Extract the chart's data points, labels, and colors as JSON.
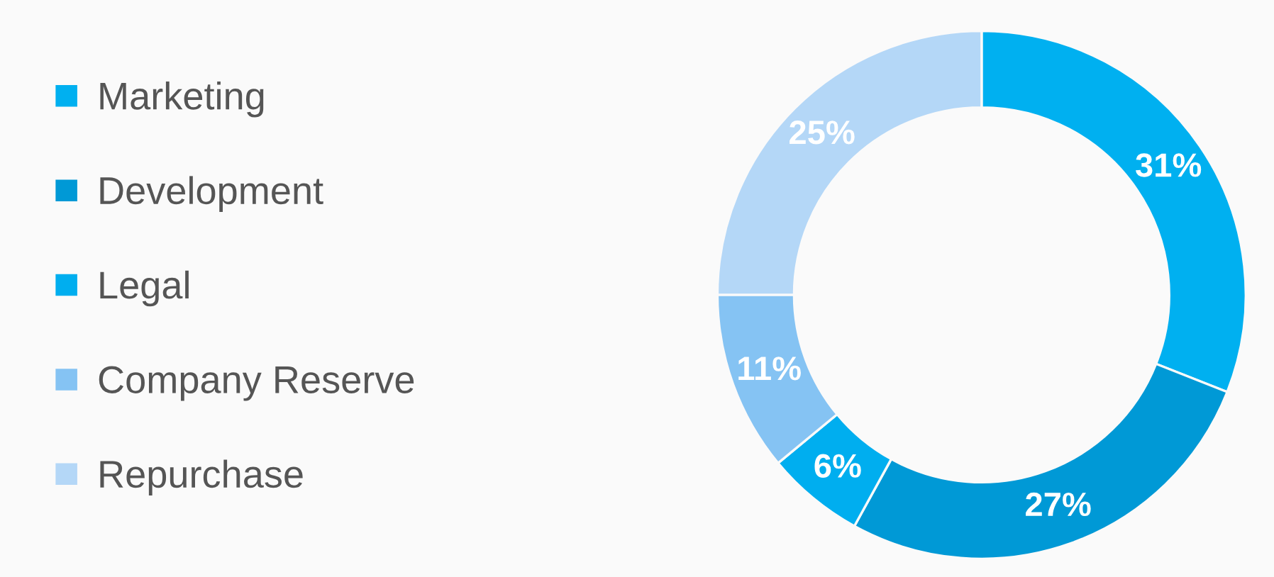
{
  "chart_data": {
    "type": "donut",
    "categories": [
      "Marketing",
      "Development",
      "Legal",
      "Company Reserve",
      "Repurchase"
    ],
    "values": [
      31,
      27,
      6,
      11,
      25
    ],
    "colors": [
      "#00b0f0",
      "#0099d6",
      "#00aeef",
      "#85c3f3",
      "#b4d7f7"
    ],
    "value_labels": [
      "31%",
      "27%",
      "6%",
      "11%",
      "25%"
    ],
    "legend": "left"
  }
}
